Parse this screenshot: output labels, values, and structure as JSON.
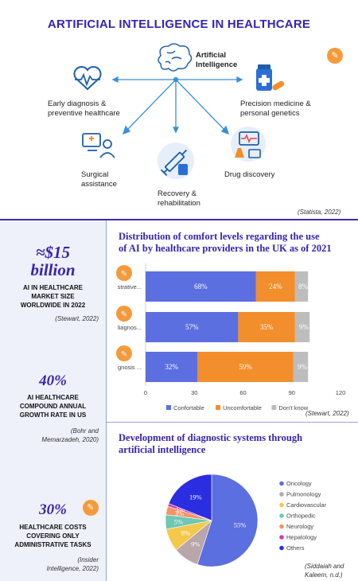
{
  "header": {
    "title": "ARTIFICIAL INTELLIGENCE IN HEALTHCARE"
  },
  "hub": {
    "center_label_line1": "Artificial",
    "center_label_line2": "Intelligence",
    "nodes": {
      "early": {
        "line1": "Early diagnosis &",
        "line2": "preventive healthcare",
        "icon": "heart-pulse-icon"
      },
      "precision": {
        "line1": "Precision medicine &",
        "line2": "personal genetics",
        "icon": "medicine-icon"
      },
      "surgical": {
        "line1": "Surgical",
        "line2": "assistance",
        "icon": "doctor-screen-icon"
      },
      "recovery": {
        "line1": "Recovery &",
        "line2": "rehabilitation",
        "icon": "syringe-icon"
      },
      "drug": {
        "line1": "Drug discovery",
        "icon": "lab-monitor-icon"
      }
    },
    "citation": "(Statista, 2022)"
  },
  "stats": [
    {
      "value_line1": "≈$15",
      "value_line2": "billion",
      "desc_line1": "AI IN HEALTHCARE",
      "desc_line2": "MARKET SIZE",
      "desc_line3": "WORLDWIDE IN 2022",
      "cite_line1": "(Stewart, 2022)"
    },
    {
      "value_line1": "40%",
      "desc_line1": "AI HEALTHCARE",
      "desc_line2": "COMPOUND ANNUAL",
      "desc_line3": "GROWTH RATE IN US",
      "cite_line1": "(Bohr and",
      "cite_line2": "Memarzadeh, 2020)"
    },
    {
      "value_line1": "30%",
      "desc_line1": "HEALTHCARE COSTS",
      "desc_line2": "COVERING ONLY",
      "desc_line3": "ADMINISTRATIVE TASKS",
      "cite_line1": "(Insider",
      "cite_line2": "Intelligence, 2022)"
    }
  ],
  "colors": {
    "accent": "#3524b0",
    "pin": "#f59a3a",
    "icon": "#1f5fa8"
  },
  "chart_data": [
    {
      "type": "bar",
      "orientation": "horizontal",
      "stacked": true,
      "title_line1": "Distribution of comfort levels regarding the use",
      "title_line2": "of AI by healthcare providers in the UK as of 2021",
      "categories": [
        "strative...",
        "liagnos...",
        "gnosis ..."
      ],
      "series": [
        {
          "name": "Confortable",
          "color": "#5b6fe0",
          "values": [
            68,
            57,
            32
          ]
        },
        {
          "name": "Uncomfortable",
          "color": "#f28e2b",
          "values": [
            24,
            35,
            59
          ]
        },
        {
          "name": "Don't know",
          "color": "#bdbdbd",
          "values": [
            8,
            9,
            9
          ]
        }
      ],
      "data_labels": [
        [
          "68%",
          "24%",
          "8%"
        ],
        [
          "57%",
          "35%",
          "9%"
        ],
        [
          "32%",
          "59%",
          "9%"
        ]
      ],
      "xlim": [
        0,
        120
      ],
      "xticks": [
        0,
        30,
        60,
        90,
        120
      ],
      "legend": "bottom",
      "citation": "(Stewart, 2022)"
    },
    {
      "type": "pie",
      "title_line1": "Development of diagnostic systems through",
      "title_line2": "artificial intelligence",
      "slices": [
        {
          "name": "Oncology",
          "value": 55,
          "label": "55%",
          "color": "#5b6fe0"
        },
        {
          "name": "Pulmonology",
          "value": 9,
          "label": "9%",
          "color": "#b8a6a9"
        },
        {
          "name": "Cardiovascular",
          "value": 8,
          "label": "8%",
          "color": "#f2c94c"
        },
        {
          "name": "Orthopedic",
          "value": 5,
          "label": "5%",
          "color": "#6fc7b4"
        },
        {
          "name": "Neurology",
          "value": 3,
          "label": "3%",
          "color": "#f0956a"
        },
        {
          "name": "Hepatology",
          "value": 1,
          "label": "1%",
          "color": "#d63aa8"
        },
        {
          "name": "Others",
          "value": 19,
          "label": "19%",
          "color": "#2b2ee0"
        }
      ],
      "legend": "right",
      "citation_line1": "(Siddaiah and",
      "citation_line2": "Kaleem, n.d.)"
    }
  ]
}
